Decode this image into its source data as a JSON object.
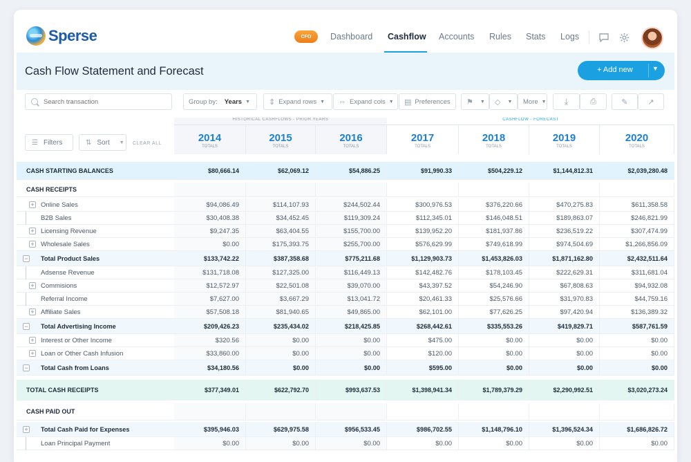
{
  "brand": {
    "name": "Sperse"
  },
  "nav": {
    "pill": "CFO",
    "items": [
      {
        "label": "Dashboard",
        "active": false
      },
      {
        "label": "Cashflow",
        "active": true
      },
      {
        "label": "Accounts",
        "active": false
      },
      {
        "label": "Rules",
        "active": false
      },
      {
        "label": "Stats",
        "active": false
      },
      {
        "label": "Logs",
        "active": false
      }
    ],
    "icons": [
      "chat-icon",
      "gear-icon"
    ]
  },
  "page": {
    "title": "Cash Flow Statement and Forecast",
    "add_button": "+ Add new"
  },
  "toolbar": {
    "search_placeholder": "Search transaction",
    "group_by_label": "Group by:",
    "group_by_value": "Years",
    "expand_rows": "Expand rows",
    "expand_cols": "Expand cols",
    "preferences": "Preferences",
    "more": "More"
  },
  "grid_controls": {
    "filters": "Filters",
    "sort": "Sort",
    "clear_all": "CLEAR ALL"
  },
  "bands": {
    "historical": "HISTORICAL CASHFLOWS - PRIOR YEARS",
    "forecast": "CASHFLOW - FORECAST"
  },
  "columns": [
    {
      "year": "2014",
      "sub": "TOTALS"
    },
    {
      "year": "2015",
      "sub": "TOTALS"
    },
    {
      "year": "2016",
      "sub": "TOTALS"
    },
    {
      "year": "2017",
      "sub": "TOTALS"
    },
    {
      "year": "2018",
      "sub": "TOTALS"
    },
    {
      "year": "2019",
      "sub": "TOTALS"
    },
    {
      "year": "2020",
      "sub": "TOTALS"
    }
  ],
  "rows": [
    {
      "kind": "hdr-blue",
      "label": "CASH STARTING BALANCES",
      "values": [
        "$80,666.14",
        "$62,069.12",
        "$54,886.25",
        "$91,990.33",
        "$504,229.12",
        "$1,144,812.31",
        "$2,039,280.48"
      ]
    },
    {
      "kind": "section",
      "label": "CASH RECEIPTS",
      "values": []
    },
    {
      "kind": "item",
      "toggle": "+",
      "label": "Online Sales",
      "values": [
        "$94,086.49",
        "$114,107.93",
        "$244,502.44",
        "$300,976.53",
        "$376,220.66",
        "$470,275.83",
        "$611,358.58"
      ]
    },
    {
      "kind": "item",
      "toggle": "",
      "label": "B2B Sales",
      "values": [
        "$30,408.38",
        "$34,452.45",
        "$119,309.24",
        "$112,345.01",
        "$146,048.51",
        "$189,863.07",
        "$246,821.99"
      ]
    },
    {
      "kind": "item",
      "toggle": "+",
      "label": "Licensing Revenue",
      "values": [
        "$9,247.35",
        "$63,404.55",
        "$155,700.00",
        "$139,952.20",
        "$181,937.86",
        "$236,519.22",
        "$307,474.99"
      ]
    },
    {
      "kind": "item",
      "toggle": "+",
      "label": "Wholesale Sales",
      "values": [
        "$0.00",
        "$175,393.75",
        "$255,700.00",
        "$576,629.99",
        "$749,618.99",
        "$974,504.69",
        "$1,266,856.09"
      ]
    },
    {
      "kind": "total",
      "toggle": "−",
      "label": "Total Product Sales",
      "values": [
        "$133,742.22",
        "$387,358.68",
        "$775,211.68",
        "$1,129,903.73",
        "$1,453,826.03",
        "$1,871,162.80",
        "$2,432,511.64"
      ]
    },
    {
      "kind": "item",
      "toggle": "",
      "label": "Adsense Revenue",
      "values": [
        "$131,718.08",
        "$127,325.00",
        "$116,449.13",
        "$142,482.76",
        "$178,103.45",
        "$222,629.31",
        "$311,681.04"
      ]
    },
    {
      "kind": "item",
      "toggle": "+",
      "label": "Commisions",
      "values": [
        "$12,572.97",
        "$22,501.08",
        "$39,070.00",
        "$43,397.52",
        "$54,246.90",
        "$67,808.63",
        "$94,932.08"
      ]
    },
    {
      "kind": "item",
      "toggle": "",
      "label": "Referral Income",
      "values": [
        "$7,627.00",
        "$3,667.29",
        "$13,041.72",
        "$20,461.33",
        "$25,576.66",
        "$31,970.83",
        "$44,759.16"
      ]
    },
    {
      "kind": "item",
      "toggle": "+",
      "label": "Affiliate Sales",
      "values": [
        "$57,508.18",
        "$81,940.65",
        "$49,865.00",
        "$62,101.00",
        "$77,626.25",
        "$97,420.94",
        "$136,389.32"
      ]
    },
    {
      "kind": "total",
      "toggle": "−",
      "label": "Total Advertising Income",
      "values": [
        "$209,426.23",
        "$235,434.02",
        "$218,425.85",
        "$268,442.61",
        "$335,553.26",
        "$419,829.71",
        "$587,761.59"
      ]
    },
    {
      "kind": "item",
      "toggle": "+",
      "label": "Interest or Other Income",
      "values": [
        "$320.56",
        "$0.00",
        "$0.00",
        "$475.00",
        "$0.00",
        "$0.00",
        "$0.00"
      ]
    },
    {
      "kind": "item",
      "toggle": "+",
      "label": "Loan or Other Cash Infusion",
      "values": [
        "$33,860.00",
        "$0.00",
        "$0.00",
        "$120.00",
        "$0.00",
        "$0.00",
        "$0.00"
      ]
    },
    {
      "kind": "total",
      "toggle": "−",
      "label": "Total Cash from Loans",
      "values": [
        "$34,180.56",
        "$0.00",
        "$0.00",
        "$595.00",
        "$0.00",
        "$0.00",
        "$0.00"
      ]
    },
    {
      "kind": "hdr-green",
      "label": "TOTAL CASH RECEIPTS",
      "values": [
        "$377,349.01",
        "$622,792.70",
        "$993,637.53",
        "$1,398,941.34",
        "$1,789,379.29",
        "$2,290,992.51",
        "$3,020,273.24"
      ]
    },
    {
      "kind": "section",
      "label": "CASH PAID OUT",
      "values": []
    },
    {
      "kind": "total",
      "toggle": "+",
      "label": "Total Cash Paid for Expenses",
      "values": [
        "$395,946.03",
        "$629,975.58",
        "$956,533.45",
        "$986,702.55",
        "$1,148,796.10",
        "$1,396,524.34",
        "$1,686,826.72"
      ]
    },
    {
      "kind": "item",
      "toggle": "",
      "label": "Loan Principal Payment",
      "values": [
        "$0.00",
        "$0.00",
        "$0.00",
        "$0.00",
        "$0.00",
        "$0.00",
        "$0.00"
      ]
    }
  ]
}
